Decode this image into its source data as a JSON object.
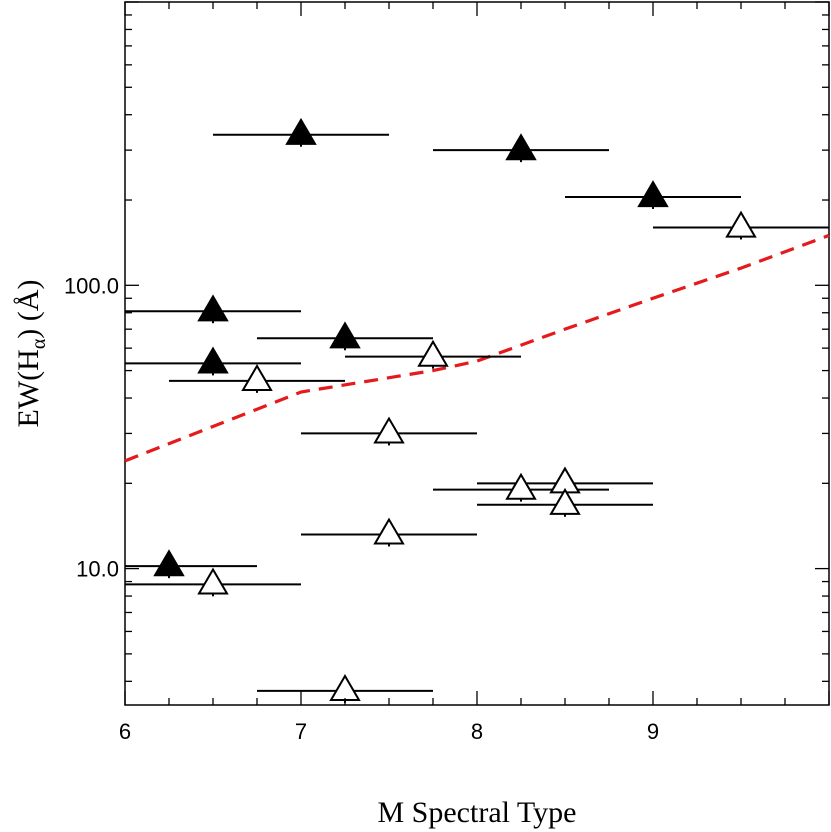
{
  "chart_data": {
    "type": "scatter",
    "xlabel": "M Spectral Type",
    "ylabel": "EW(Hα) (Å)",
    "ylabel_parts": {
      "prefix": "EW(H",
      "subscript": "α",
      "suffix": ") (Å)"
    },
    "x_scale": "linear",
    "y_scale": "log",
    "xlim": [
      6,
      10
    ],
    "ylim": [
      3.3,
      1000
    ],
    "x_ticks": [
      6,
      7,
      8,
      9
    ],
    "x_tick_labels": [
      "6",
      "7",
      "8",
      "9"
    ],
    "y_major_ticks": [
      10,
      100
    ],
    "y_tick_labels": [
      "10.0",
      "100.0"
    ],
    "grid": false,
    "series": [
      {
        "marker": "filled-triangle",
        "color": "#000000",
        "points": [
          {
            "x": 7.0,
            "y": 340,
            "xerr": [
              6.5,
              7.5
            ]
          },
          {
            "x": 8.25,
            "y": 300,
            "xerr": [
              7.75,
              8.75
            ]
          },
          {
            "x": 9.0,
            "y": 205,
            "xerr": [
              8.5,
              9.5
            ]
          },
          {
            "x": 6.5,
            "y": 81,
            "xerr": [
              6.0,
              7.0
            ]
          },
          {
            "x": 7.25,
            "y": 65,
            "xerr": [
              6.75,
              7.75
            ]
          },
          {
            "x": 6.5,
            "y": 53,
            "xerr": [
              6.0,
              7.0
            ]
          },
          {
            "x": 6.25,
            "y": 10.2,
            "xerr": [
              6.0,
              6.75
            ]
          }
        ]
      },
      {
        "marker": "open-triangle",
        "color": "#000000",
        "points": [
          {
            "x": 9.5,
            "y": 160,
            "xerr": [
              9.0,
              10.0
            ]
          },
          {
            "x": 7.75,
            "y": 56,
            "xerr": [
              7.25,
              8.25
            ]
          },
          {
            "x": 6.75,
            "y": 46,
            "xerr": [
              6.25,
              7.25
            ]
          },
          {
            "x": 7.5,
            "y": 30,
            "xerr": [
              7.0,
              8.0
            ]
          },
          {
            "x": 8.5,
            "y": 20,
            "xerr": [
              8.0,
              9.0
            ]
          },
          {
            "x": 8.25,
            "y": 19,
            "xerr": [
              7.75,
              8.75
            ]
          },
          {
            "x": 8.5,
            "y": 16.8,
            "xerr": [
              8.0,
              9.0
            ]
          },
          {
            "x": 7.5,
            "y": 13.2,
            "xerr": [
              7.0,
              8.0
            ]
          },
          {
            "x": 6.5,
            "y": 8.8,
            "xerr": [
              6.0,
              7.0
            ]
          },
          {
            "x": 7.25,
            "y": 3.7,
            "xerr": [
              6.75,
              7.75
            ]
          }
        ]
      }
    ],
    "threshold_line": {
      "style": "dashed",
      "color": "#e41a1c",
      "x": [
        6.0,
        7.0,
        7.75,
        8.0,
        8.5,
        9.0,
        9.5,
        10.0
      ],
      "y": [
        24,
        42,
        50,
        54,
        70,
        90,
        115,
        150
      ]
    }
  }
}
